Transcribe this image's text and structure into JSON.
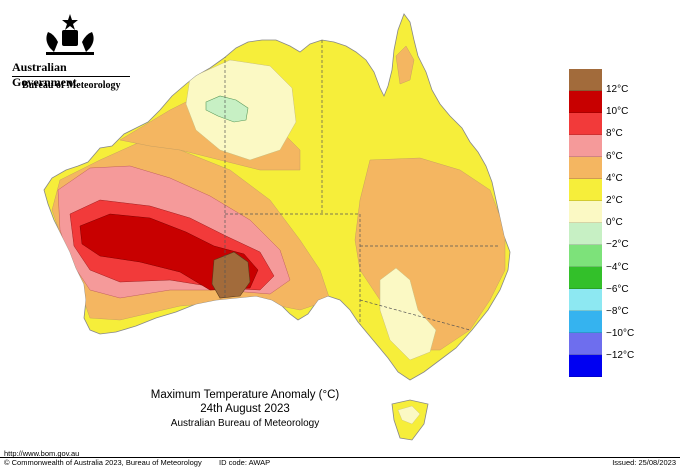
{
  "header": {
    "gov_title": "Australian Government",
    "bom_title": "Bureau of Meteorology"
  },
  "legend": {
    "items": [
      {
        "label": "12°C",
        "color": "#a26b3b"
      },
      {
        "label": "10°C",
        "color": "#c80000"
      },
      {
        "label": "8°C",
        "color": "#f23a3a"
      },
      {
        "label": "6°C",
        "color": "#f59a9a"
      },
      {
        "label": "4°C",
        "color": "#f4b661"
      },
      {
        "label": "2°C",
        "color": "#f6ee3a"
      },
      {
        "label": "0°C",
        "color": "#fbf9c4"
      },
      {
        "label": "−2°C",
        "color": "#c7f0c4"
      },
      {
        "label": "−4°C",
        "color": "#7de27a"
      },
      {
        "label": "−6°C",
        "color": "#33c02a"
      },
      {
        "label": "−8°C",
        "color": "#8de8f2"
      },
      {
        "label": "−10°C",
        "color": "#35b3ef"
      },
      {
        "label": "−12°C",
        "color": "#6e6eee"
      },
      {
        "label": "",
        "color": "#0000f2"
      }
    ]
  },
  "title": {
    "line1": "Maximum Temperature Anomaly (°C)",
    "line2": "24th August 2023",
    "line3": "Australian Bureau of Meteorology"
  },
  "footer": {
    "url": "http://www.bom.gov.au",
    "copyright": "© Commonwealth of Australia 2023, Bureau of Meteorology",
    "id_code": "ID code: AWAP",
    "issued": "Issued: 25/08/2023"
  }
}
